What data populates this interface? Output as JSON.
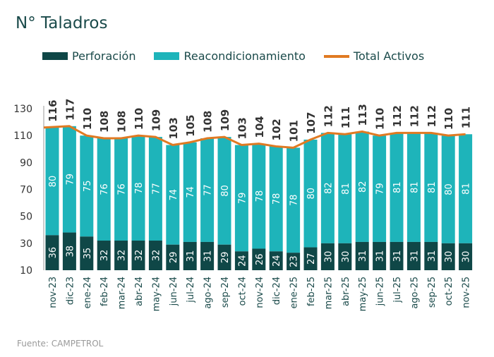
{
  "title": "N° Taladros",
  "source": "Fuente: CAMPETROL",
  "colors": {
    "perforacion": "#0f4747",
    "reacondicionamiento": "#1eb4ba",
    "total": "#e07a22"
  },
  "chart_data": {
    "type": "bar",
    "stacked": true,
    "categories": [
      "nov-23",
      "dic-23",
      "ene-24",
      "feb-24",
      "mar-24",
      "abr-24",
      "may-24",
      "jun-24",
      "jul-24",
      "ago-24",
      "sep-24",
      "oct-24",
      "nov-24",
      "dic-24",
      "ene-25",
      "feb-25",
      "mar-25",
      "abr-25",
      "may-25",
      "jun-25",
      "jul-25",
      "ago-25",
      "sep-25",
      "oct-25",
      "nov-25"
    ],
    "series": [
      {
        "name": "Perforación",
        "type": "bar",
        "values": [
          36,
          38,
          35,
          32,
          32,
          32,
          32,
          29,
          31,
          31,
          29,
          24,
          26,
          24,
          23,
          27,
          30,
          30,
          31,
          31,
          31,
          31,
          31,
          30,
          30
        ]
      },
      {
        "name": "Reacondicionamiento",
        "type": "bar",
        "values": [
          80,
          79,
          75,
          76,
          76,
          78,
          77,
          74,
          74,
          77,
          80,
          79,
          78,
          78,
          78,
          80,
          82,
          81,
          82,
          79,
          81,
          81,
          81,
          80,
          81
        ]
      },
      {
        "name": "Total Activos",
        "type": "line",
        "values": [
          116,
          117,
          110,
          108,
          108,
          110,
          109,
          103,
          105,
          108,
          109,
          103,
          104,
          102,
          101,
          107,
          112,
          111,
          113,
          110,
          112,
          112,
          112,
          110,
          111
        ]
      }
    ],
    "yticks": [
      10,
      30,
      50,
      70,
      90,
      110,
      130
    ],
    "ylim": [
      10,
      140
    ],
    "grid": false,
    "legend": "top"
  }
}
